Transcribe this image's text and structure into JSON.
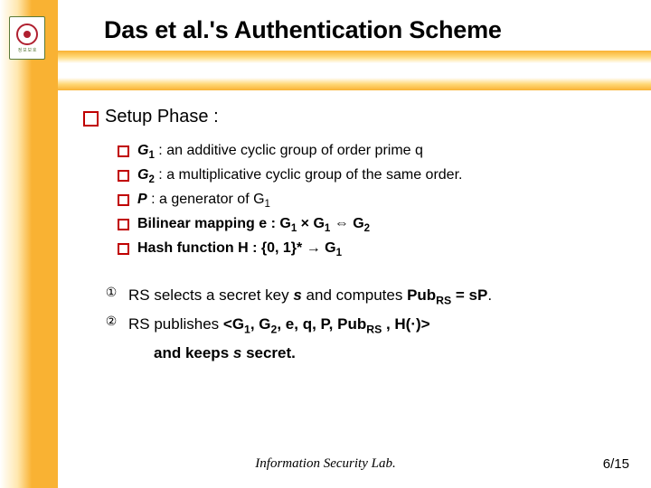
{
  "colors": {
    "accent_band": "#f9b233",
    "bullet_border": "#c00000",
    "text": "#000000",
    "background": "#ffffff"
  },
  "logo": {
    "border_color": "#5a7a3a",
    "ring_color": "#b02030",
    "caption": "정 보 보 호"
  },
  "title": "Das et al.'s Authentication Scheme",
  "setup": {
    "heading": "Setup Phase :",
    "items": [
      {
        "label": "G",
        "sub": "1",
        "desc": " : an additive cyclic group of order prime q"
      },
      {
        "label": "G",
        "sub": "2",
        "desc": " : a multiplicative cyclic group of the same order."
      },
      {
        "label": "P",
        "sub": "",
        "desc_html": " : a generator of G<sub>1</sub>"
      },
      {
        "label_html": "Bilinear mapping e : G<sub>1</sub> × G<sub>1</sub> ⇔ G<sub>2</sub>"
      },
      {
        "label_html": "Hash function H : {0, 1}* → G<sub>1</sub>"
      }
    ]
  },
  "steps": {
    "one_marker": "①",
    "two_marker": "②",
    "one_html": "RS selects a secret key <i class=\"var\">s</i> and computes <b>Pub<sub>RS</sub> = sP</b>.",
    "two_html": "RS publishes <b>&lt;G<sub>1</sub>, G<sub>2</sub>, e, q, P, Pub<sub>RS</sub> , H(·)&gt;</b>",
    "two_cont": "and keeps ",
    "two_cont_var": "s",
    "two_cont_tail": " secret."
  },
  "footer": {
    "lab": "Information Security Lab.",
    "page": "6/15"
  }
}
